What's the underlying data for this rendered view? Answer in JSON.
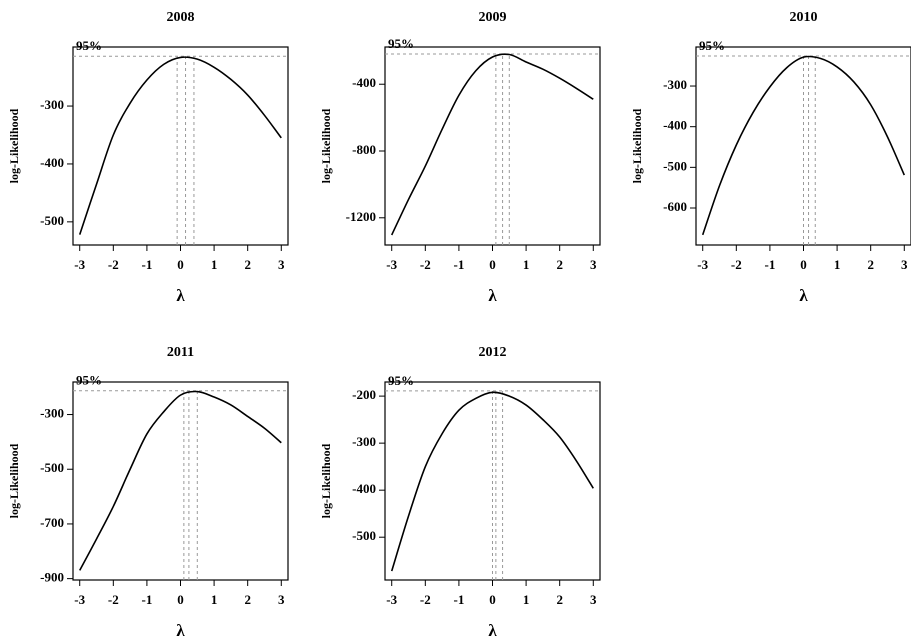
{
  "chart_data": [
    {
      "type": "line",
      "title": "2008",
      "xlabel": "λ",
      "ylabel": "log-Likelihood",
      "annotation": "95%",
      "color": "#000000",
      "x": [
        -3,
        -2.5,
        -2,
        -1.5,
        -1,
        -0.5,
        0,
        0.5,
        1,
        1.5,
        2,
        2.5,
        3
      ],
      "values": [
        -522,
        -435,
        -350,
        -295,
        -255,
        -228,
        -216,
        -219,
        -233,
        -254,
        -281,
        -316,
        -355
      ],
      "xlim": [
        -3.2,
        3.2
      ],
      "ylim": [
        -540,
        -198
      ],
      "xticks": [
        -3,
        -2,
        -1,
        0,
        1,
        2,
        3
      ],
      "yticks": [
        -500,
        -400,
        -300
      ],
      "ci_lambda": [
        -0.1,
        0.15,
        0.4
      ],
      "ci_level": -214
    },
    {
      "type": "line",
      "title": "2009",
      "xlabel": "λ",
      "ylabel": "log-Likelihood",
      "annotation": "95%",
      "color": "#000000",
      "x": [
        -3,
        -2.5,
        -2,
        -1.5,
        -1,
        -0.5,
        0,
        0.5,
        1,
        1.5,
        2,
        2.5,
        3
      ],
      "values": [
        -1303,
        -1090,
        -890,
        -670,
        -466,
        -320,
        -237,
        -222,
        -267,
        -310,
        -364,
        -425,
        -490
      ],
      "xlim": [
        -3.2,
        3.2
      ],
      "ylim": [
        -1363,
        -177
      ],
      "xticks": [
        -3,
        -2,
        -1,
        0,
        1,
        2,
        3
      ],
      "yticks": [
        -1200,
        -800,
        -400
      ],
      "ci_lambda": [
        0.1,
        0.3,
        0.5
      ],
      "ci_level": -219
    },
    {
      "type": "line",
      "title": "2010",
      "xlabel": "λ",
      "ylabel": "log-Likelihood",
      "annotation": "95%",
      "color": "#000000",
      "x": [
        -3,
        -2.5,
        -2,
        -1.5,
        -1,
        -0.5,
        0,
        0.5,
        1,
        1.5,
        2,
        2.5,
        3
      ],
      "values": [
        -666,
        -545,
        -445,
        -365,
        -302,
        -255,
        -229,
        -232,
        -253,
        -290,
        -346,
        -425,
        -519
      ],
      "xlim": [
        -3.2,
        3.2
      ],
      "ylim": [
        -691,
        -204
      ],
      "xticks": [
        -3,
        -2,
        -1,
        0,
        1,
        2,
        3
      ],
      "yticks": [
        -600,
        -500,
        -400,
        -300
      ],
      "ci_lambda": [
        0,
        0.15,
        0.35
      ],
      "ci_level": -226
    },
    {
      "type": "line",
      "title": "2011",
      "xlabel": "λ",
      "ylabel": "log-Likelihood",
      "annotation": "95%",
      "color": "#000000",
      "x": [
        -3,
        -2.5,
        -2,
        -1.5,
        -1,
        -0.5,
        0,
        0.5,
        1,
        1.5,
        2,
        2.5,
        3
      ],
      "values": [
        -870,
        -755,
        -636,
        -500,
        -371,
        -290,
        -229,
        -216,
        -236,
        -265,
        -307,
        -350,
        -403
      ],
      "xlim": [
        -3.2,
        3.2
      ],
      "ylim": [
        -905,
        -181
      ],
      "xticks": [
        -3,
        -2,
        -1,
        0,
        1,
        2,
        3
      ],
      "yticks": [
        -900,
        -700,
        -500,
        -300
      ],
      "ci_lambda": [
        0.1,
        0.25,
        0.5
      ],
      "ci_level": -213
    },
    {
      "type": "line",
      "title": "2012",
      "xlabel": "λ",
      "ylabel": "log-Likelihood",
      "annotation": "95%",
      "color": "#000000",
      "x": [
        -3,
        -2.5,
        -2,
        -1.5,
        -1,
        -0.5,
        0,
        0.5,
        1,
        1.5,
        2,
        2.5,
        3
      ],
      "values": [
        -572,
        -455,
        -350,
        -280,
        -230,
        -205,
        -192,
        -200,
        -219,
        -250,
        -287,
        -338,
        -396
      ],
      "xlim": [
        -3.2,
        3.2
      ],
      "ylim": [
        -591,
        -170
      ],
      "xticks": [
        -3,
        -2,
        -1,
        0,
        1,
        2,
        3
      ],
      "yticks": [
        -500,
        -400,
        -300,
        -200
      ],
      "ci_lambda": [
        0,
        0.1,
        0.3
      ],
      "ci_level": -189
    }
  ]
}
